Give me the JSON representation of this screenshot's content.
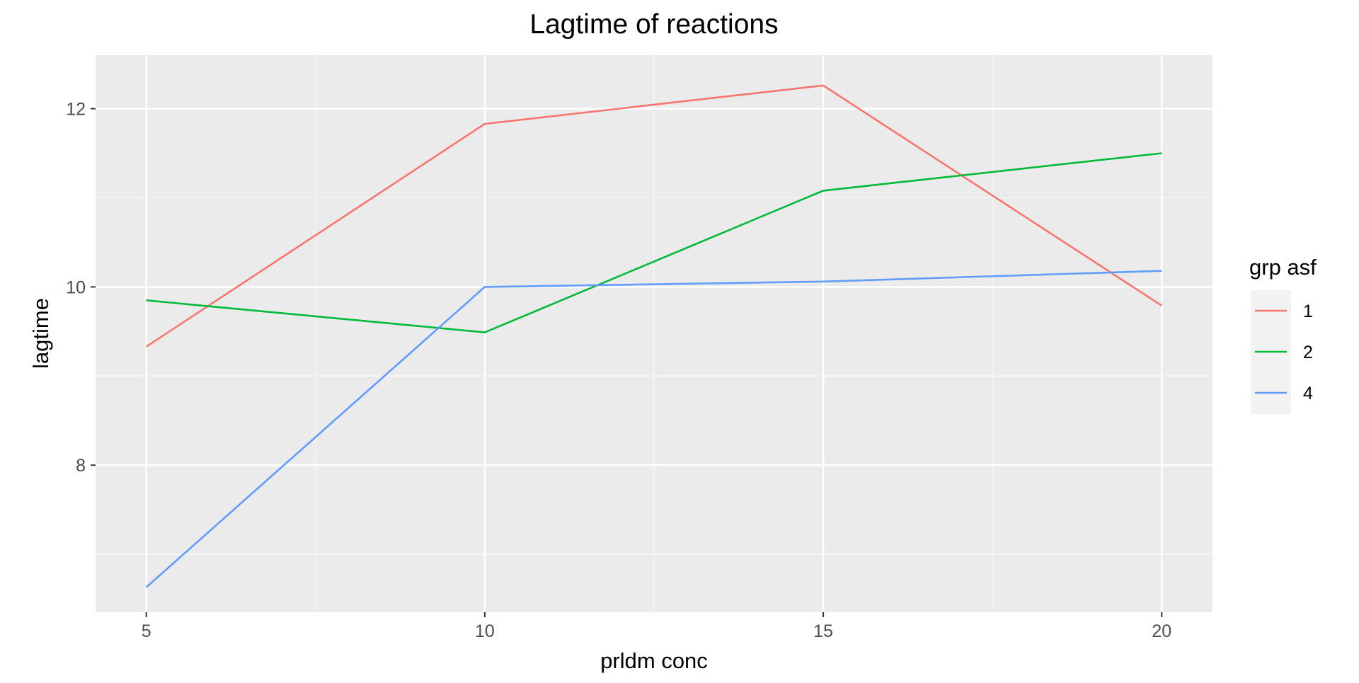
{
  "chart_data": {
    "type": "line",
    "title": "Lagtime of reactions",
    "xlabel": "prldm conc",
    "ylabel": "lagtime",
    "x": [
      5,
      10,
      15,
      20
    ],
    "xlim": [
      4.25,
      20.75
    ],
    "ylim": [
      6.35,
      12.6
    ],
    "xticks": [
      5,
      10,
      15,
      20
    ],
    "yticks": [
      8,
      10,
      12
    ],
    "xtick_labels": [
      "5",
      "10",
      "15",
      "20"
    ],
    "ytick_labels": [
      "8",
      "10",
      "12"
    ],
    "grid": true,
    "legend": {
      "title": "grp asf",
      "position": "right"
    },
    "series": [
      {
        "name": "1",
        "color": "#F8766D",
        "values": [
          9.33,
          11.83,
          12.26,
          9.79
        ]
      },
      {
        "name": "2",
        "color": "#00BA38",
        "values": [
          9.85,
          9.49,
          11.08,
          11.5
        ]
      },
      {
        "name": "4",
        "color": "#619CFF",
        "values": [
          6.63,
          10.0,
          10.06,
          10.18
        ]
      }
    ],
    "colors": {
      "panel_background": "#EBEBEB",
      "grid_major": "#FFFFFF",
      "grid_minor": "#F7F7F7",
      "tick_text": "#4D4D4D",
      "axis_title": "#000000"
    }
  }
}
